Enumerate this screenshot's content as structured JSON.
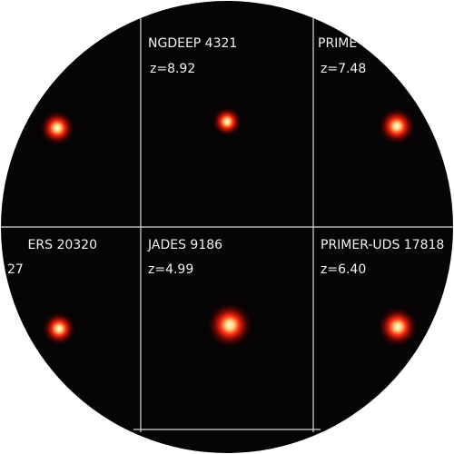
{
  "panels": [
    {
      "label": "NGDEEP 4321",
      "redshift": "z=8.92"
    },
    {
      "label": "PRIME",
      "redshift": "z=7.48"
    },
    {
      "label": "ERS 20320",
      "redshift": "27"
    },
    {
      "label": "JADES 9186",
      "redshift": "z=4.99"
    },
    {
      "label": "PRIMER-UDS 17818",
      "redshift": "z=6.40"
    }
  ]
}
